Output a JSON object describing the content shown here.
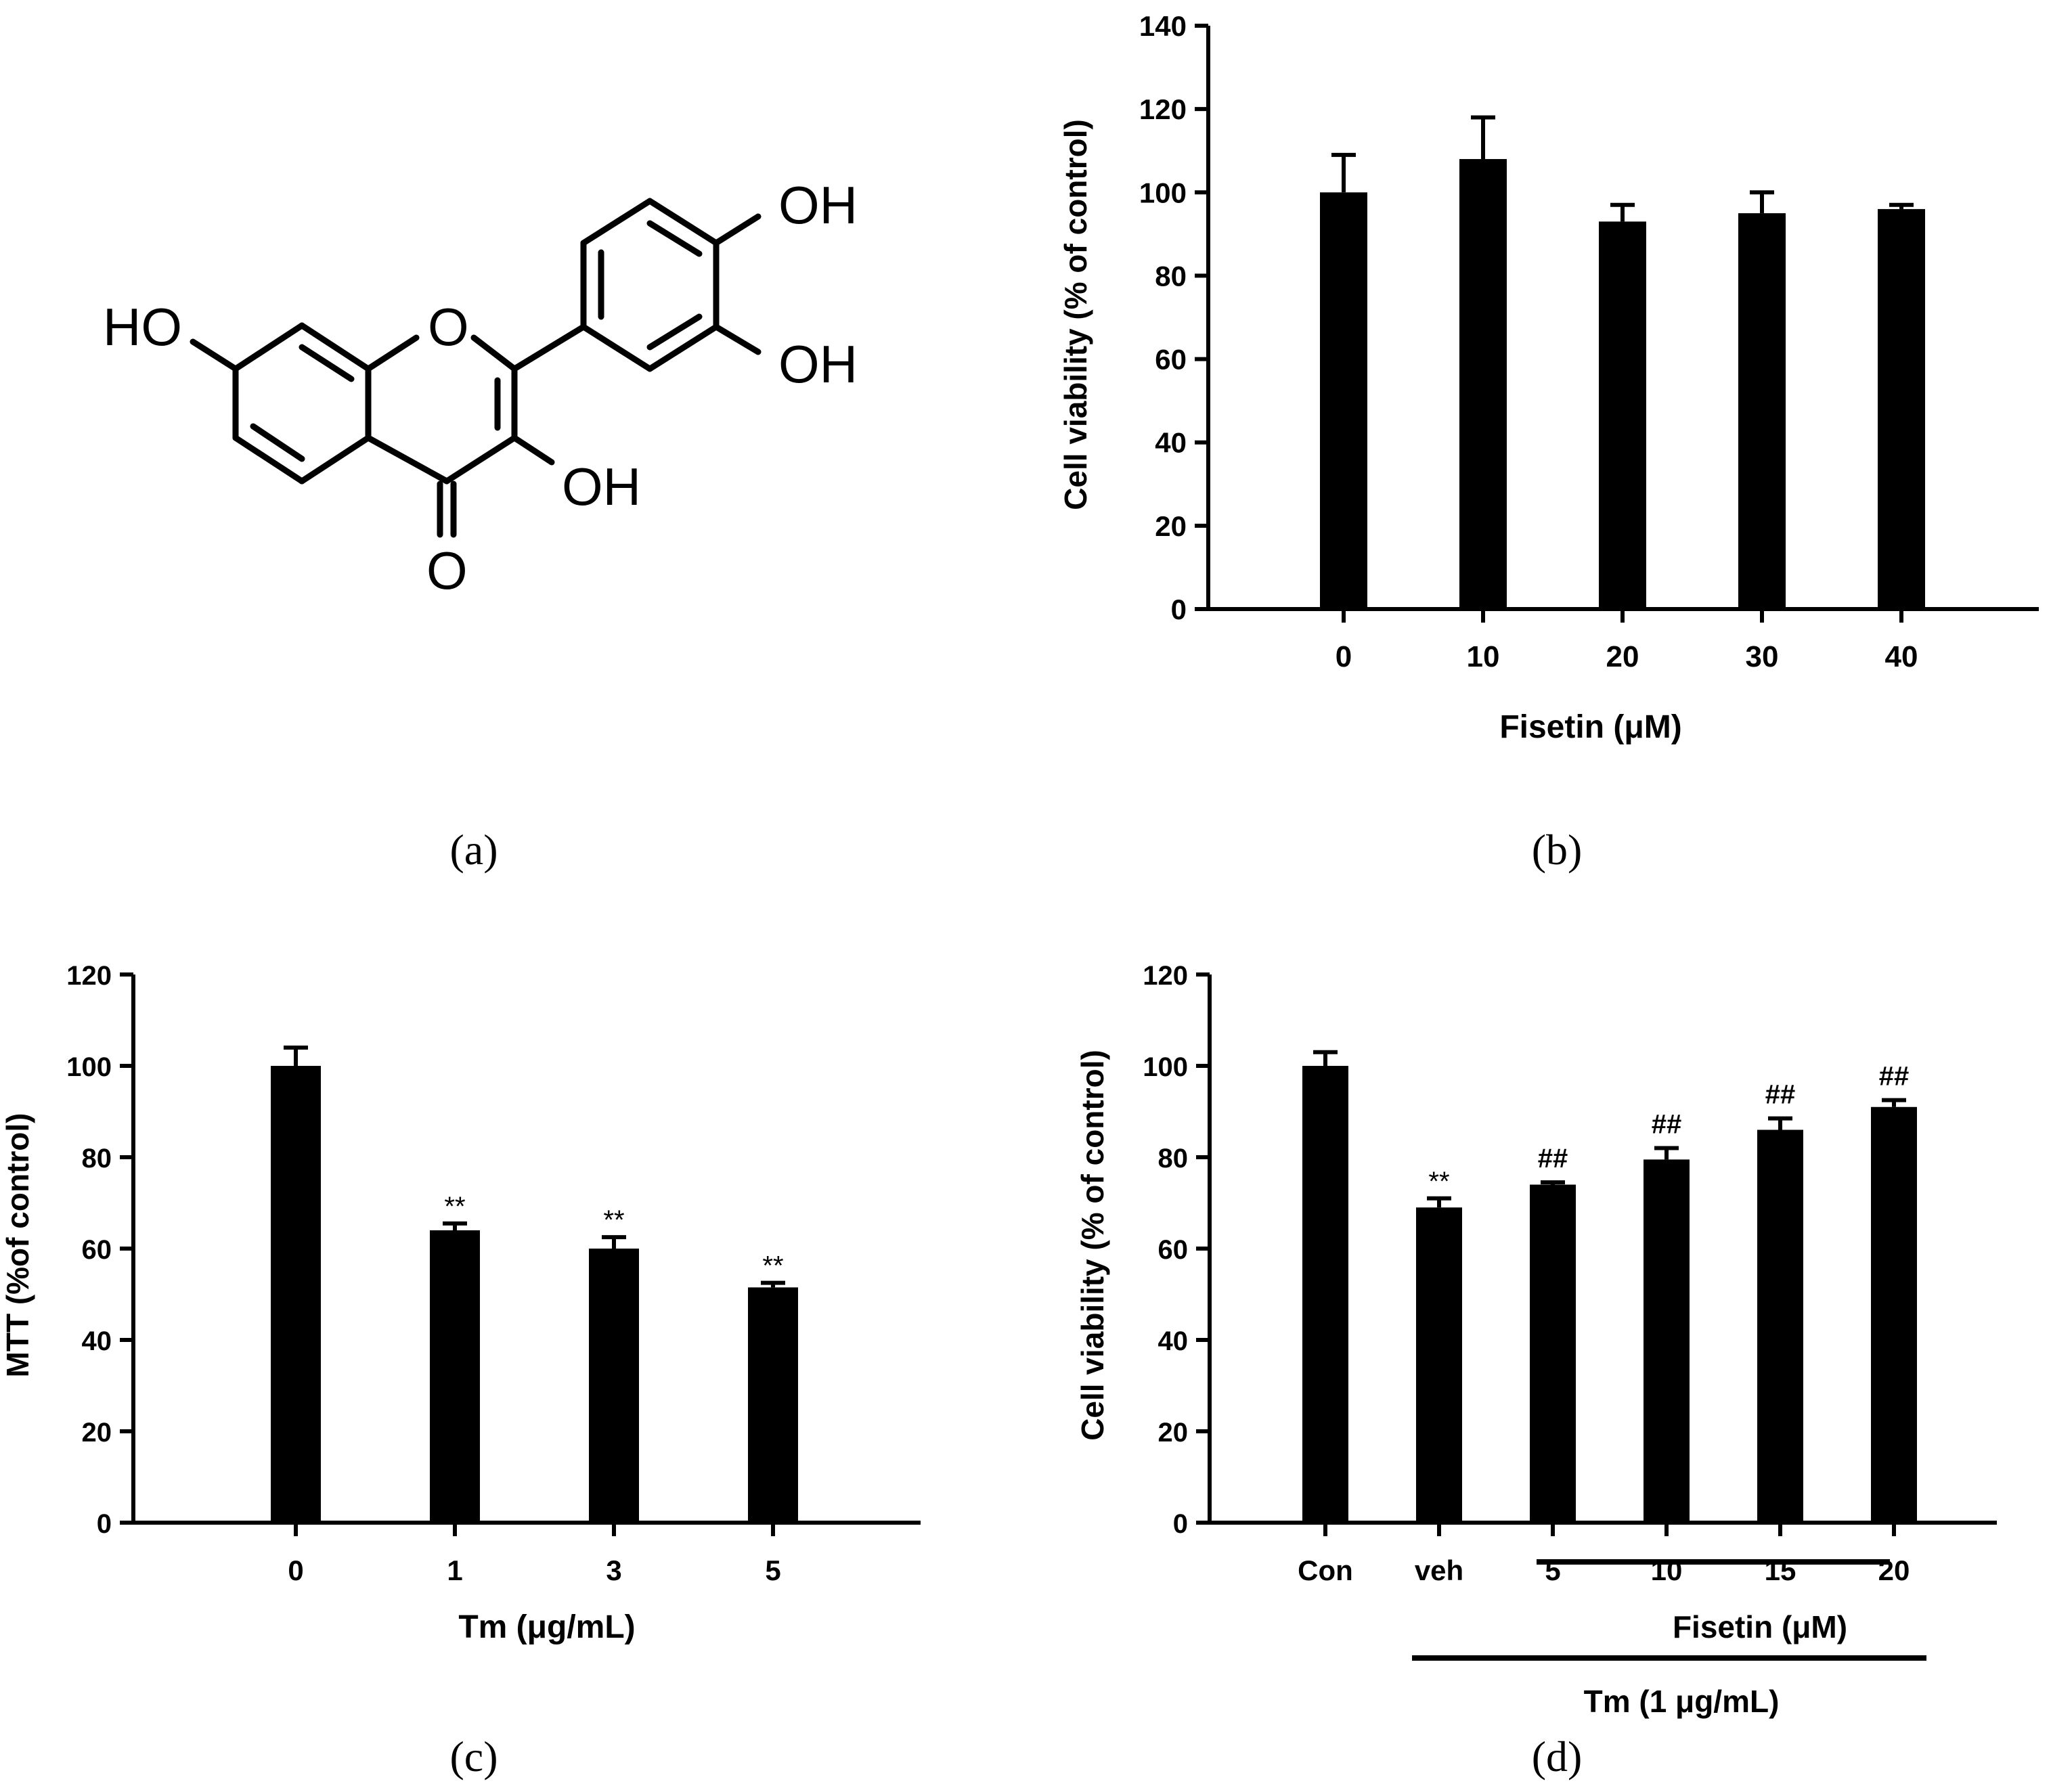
{
  "molecule": {
    "labels": {
      "oh_top": "OH",
      "oh_right": "OH",
      "oh_bottom": "OH",
      "ho_left": "HO",
      "ring_o": "O",
      "carbonyl_o": "O"
    }
  },
  "panel_labels": {
    "a": "(a)",
    "b": "(b)",
    "c": "(c)",
    "d": "(d)"
  },
  "chart_data": [
    {
      "panel": "b",
      "type": "bar",
      "categories": [
        "0",
        "10",
        "20",
        "30",
        "40"
      ],
      "values": [
        100,
        108,
        93,
        95,
        96
      ],
      "errors": [
        9,
        10,
        4,
        5,
        1
      ],
      "significance": [
        "",
        "",
        "",
        "",
        ""
      ],
      "title": "",
      "xlabel": "Fisetin (μM)",
      "ylabel": "Cell viability  (% of control)",
      "ylim": [
        0,
        140
      ],
      "yticks": [
        0,
        20,
        40,
        60,
        80,
        100,
        120,
        140
      ]
    },
    {
      "panel": "c",
      "type": "bar",
      "categories": [
        "0",
        "1",
        "3",
        "5"
      ],
      "values": [
        100,
        64,
        60,
        51.5
      ],
      "errors": [
        4,
        1.5,
        2.5,
        1
      ],
      "significance": [
        "",
        "**",
        "**",
        "**"
      ],
      "title": "",
      "xlabel": "Tm  (μg/mL)",
      "ylabel": "MTT  (%of control)",
      "ylim": [
        0,
        120
      ],
      "yticks": [
        0,
        20,
        40,
        60,
        80,
        100,
        120
      ]
    },
    {
      "panel": "d",
      "type": "bar",
      "categories": [
        "Con",
        "veh",
        "5",
        "10",
        "15",
        "20"
      ],
      "values": [
        100,
        69,
        74,
        79.5,
        86,
        91
      ],
      "errors": [
        3,
        2,
        0.5,
        2.5,
        2.5,
        1.5
      ],
      "significance": [
        "",
        "**",
        "##",
        "##",
        "##",
        "##"
      ],
      "title": "",
      "xlabel": "",
      "ylabel": "Cell viability (% of control)",
      "ylim": [
        0,
        120
      ],
      "yticks": [
        0,
        20,
        40,
        60,
        80,
        100,
        120
      ],
      "group_labels": [
        "Fisetin (μM)",
        "Tm (1 μg/mL)"
      ]
    }
  ]
}
